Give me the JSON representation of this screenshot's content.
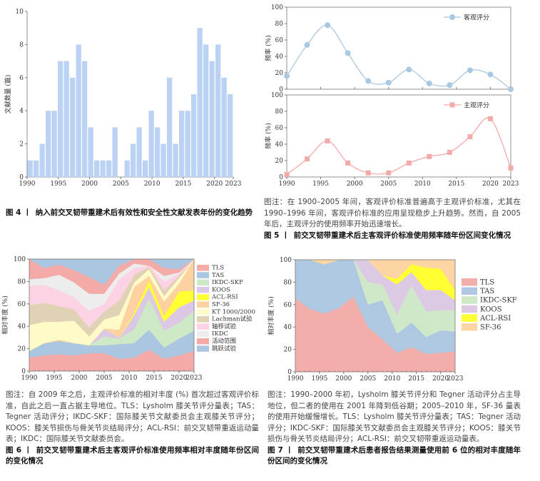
{
  "figures": {
    "fig4": {
      "label": "图 4 丨",
      "title": "纳入前交叉韧带重建术后有效性和安全性文献发表年份的变化趋势"
    },
    "fig5": {
      "note": "图注：在 1900–2005 年间，客观评价标准普遍高于主观评价标准，尤其在 1990–1996 年间，客观评价标准的应用呈现稳步上升趋势。然而，自 2005 年后，主观评分的使用频率开始迅速增长。",
      "label": "图 5 丨",
      "title": "前交叉韧带重建术后主客观评价标准使用频率随年份区间变化情况"
    },
    "fig6": {
      "note": "图注：自 2009 年之后，主观评价标准的相对丰度 (%) 首次超过客观评价标准，自此之后一直占据主导地位。TLS：Lysholm 膝关节评分量表；TAS：Tegner 活动评分；IKDC-SKF：国际膝关节文献委员会主观膝关节评分；KOOS：膝关节损伤与骨关节炎结局评分；ACL-RSI：前交叉韧带重返运动量表；IKDC：国际膝关节文献委员会。",
      "label": "图 6 丨",
      "title": "前交叉韧带重建术后主客观评价标准使用频率相对丰度随年份区间的变化情况"
    },
    "fig7": {
      "note": "图注：1990–2000 年初，Lysholm 膝关节评分和 Tegner 活动评分占主导地位，但二者的使用在 2001 年降到低谷期；2005–2010 年，SF-36 量表的使用开始缓慢增长。TLS：Lysholm 膝关节评分量表；TAS：Tegner 活动评分；IKDC-SKF：国际膝关节文献委员会主观膝关节评分；KOOS：膝关节损伤与骨关节炎结局评分；ACL-RSI：前交叉韧带重返运动量表。",
      "label": "图 7 丨",
      "title": "前交叉韧带重建术后患者报告结果测量使用前 6 位的相对丰度随年份区间的变化情况"
    }
  },
  "chart_data": [
    {
      "id": "fig4",
      "type": "bar",
      "ylabel": "文献数量 (篇)",
      "xlabel": "",
      "ylim": [
        0,
        10
      ],
      "yticks": [
        0,
        2,
        4,
        6,
        8,
        10
      ],
      "xticks": [
        1990,
        1995,
        2000,
        2005,
        2010,
        2015,
        2020,
        2023
      ],
      "categories": [
        1990,
        1991,
        1992,
        1993,
        1994,
        1995,
        1996,
        1997,
        1998,
        1999,
        2000,
        2001,
        2002,
        2003,
        2004,
        2005,
        2006,
        2007,
        2008,
        2009,
        2010,
        2011,
        2012,
        2013,
        2014,
        2015,
        2016,
        2017,
        2018,
        2019,
        2020,
        2021,
        2022,
        2023
      ],
      "values": [
        1,
        1,
        2,
        4,
        4,
        7,
        7,
        6,
        8,
        7,
        3,
        1,
        1,
        1,
        3,
        0,
        1,
        2,
        3,
        1,
        4,
        3,
        2,
        6,
        2,
        4,
        4,
        5,
        9,
        8,
        7,
        8,
        6,
        5
      ],
      "color": "#bcd2f4"
    },
    {
      "id": "fig5",
      "type": "line",
      "ylabel": "频率 (%)",
      "ylim": [
        0,
        100
      ],
      "yticks": [
        0,
        20,
        40,
        60,
        80,
        100
      ],
      "xticks": [
        1990,
        1995,
        2000,
        2005,
        2010,
        2015,
        2020,
        2023
      ],
      "x": [
        1990,
        1993,
        1996,
        1999,
        2002,
        2005,
        2008,
        2011,
        2014,
        2017,
        2020,
        2023
      ],
      "series": [
        {
          "name": "客观评分",
          "values": [
            16,
            54,
            78,
            44,
            10,
            8,
            24,
            7,
            5,
            23,
            18,
            0
          ],
          "color": "#aac8e0",
          "marker": "circle"
        },
        {
          "name": "主观评分",
          "values": [
            3,
            22,
            44,
            17,
            5,
            5,
            17,
            25,
            30,
            49,
            71,
            11
          ],
          "color": "#f4aaa8",
          "marker": "square"
        }
      ]
    },
    {
      "id": "fig6",
      "type": "area",
      "stacked": true,
      "ylabel": "相对丰度 (%)",
      "ylim": [
        0,
        100
      ],
      "legend": "right",
      "yticks": [
        0,
        20,
        40,
        60,
        80,
        100
      ],
      "xticks": [
        1990,
        1995,
        2000,
        2005,
        2010,
        2015,
        2020,
        2023
      ],
      "x": [
        1990,
        1993,
        1996,
        1999,
        2002,
        2005,
        2008,
        2011,
        2014,
        2017,
        2020,
        2023
      ],
      "series": [
        {
          "name": "TLS",
          "color": "#f4aaa6",
          "values": [
            12,
            14,
            15,
            14,
            16,
            16,
            11,
            12,
            19,
            11,
            14,
            18
          ]
        },
        {
          "name": "TAS",
          "color": "#aac6e0",
          "values": [
            6,
            11,
            12,
            11,
            7,
            7,
            13,
            13,
            18,
            10,
            15,
            18
          ]
        },
        {
          "name": "IKDC-SKF",
          "color": "#cde9c6",
          "values": [
            0,
            0,
            0,
            0,
            0,
            8,
            5,
            12,
            28,
            15,
            14,
            18
          ]
        },
        {
          "name": "KOOS",
          "color": "#dcc8e4",
          "values": [
            0,
            0,
            0,
            0,
            0,
            7,
            1,
            13,
            10,
            8,
            14,
            9
          ]
        },
        {
          "name": "ACL-RSI",
          "color": "#ffff33",
          "values": [
            0,
            0,
            0,
            0,
            0,
            0,
            0,
            2,
            6,
            5,
            14,
            9
          ]
        },
        {
          "name": "SF-36",
          "color": "#fdd2a0",
          "values": [
            0,
            0,
            1,
            0,
            0,
            0,
            7,
            23,
            4,
            13,
            7,
            28
          ]
        },
        {
          "name": "KT 1000/2000",
          "color": "#fffac8",
          "values": [
            23,
            19,
            16,
            20,
            8,
            8,
            13,
            4,
            6,
            5,
            5,
            0
          ]
        },
        {
          "name": "Lachman试验",
          "color": "#e0d2b4",
          "values": [
            18,
            17,
            14,
            10,
            8,
            7,
            13,
            7,
            2,
            5,
            2,
            0
          ]
        },
        {
          "name": "轴移试验",
          "color": "#fcd3e4",
          "values": [
            17,
            16,
            14,
            11,
            15,
            7,
            19,
            6,
            1,
            8,
            2,
            0
          ]
        },
        {
          "name": "IKDC",
          "color": "#ededed",
          "values": [
            6,
            6,
            14,
            13,
            15,
            9,
            5,
            4,
            0,
            5,
            1,
            0
          ]
        },
        {
          "name": "活动范围",
          "color": "#f4aaa6",
          "values": [
            18,
            9,
            9,
            11,
            15,
            8,
            7,
            4,
            6,
            7,
            3,
            0
          ]
        },
        {
          "name": "跳跃试验",
          "color": "#aac6e0",
          "values": [
            0,
            8,
            5,
            10,
            16,
            23,
            6,
            0,
            0,
            8,
            9,
            0
          ]
        }
      ]
    },
    {
      "id": "fig7",
      "type": "area",
      "stacked": true,
      "ylabel": "相对丰度 (%)",
      "ylim": [
        0,
        100
      ],
      "legend": "right",
      "yticks": [
        0,
        20,
        40,
        60,
        80,
        100
      ],
      "xticks": [
        1990,
        1995,
        2000,
        2005,
        2010,
        2015,
        2020,
        2023
      ],
      "x": [
        1990,
        1993,
        1996,
        1999,
        2002,
        2005,
        2008,
        2011,
        2014,
        2017,
        2020,
        2023
      ],
      "series": [
        {
          "name": "TLS",
          "color": "#f4aeaa",
          "values": [
            66,
            56,
            52,
            57,
            67,
            40,
            29,
            17,
            22,
            16,
            17,
            18
          ]
        },
        {
          "name": "TAS",
          "color": "#aec8e2",
          "values": [
            34,
            44,
            44,
            43,
            33,
            20,
            35,
            17,
            22,
            15,
            20,
            18
          ]
        },
        {
          "name": "IKDC-SKF",
          "color": "#cfe8c8",
          "values": [
            0,
            0,
            0,
            0,
            0,
            20,
            14,
            17,
            33,
            23,
            18,
            19
          ]
        },
        {
          "name": "KOOS",
          "color": "#dccae4",
          "values": [
            0,
            0,
            0,
            0,
            0,
            20,
            8,
            27,
            12,
            19,
            18,
            9
          ]
        },
        {
          "name": "ACL-RSI",
          "color": "#ffff33",
          "values": [
            0,
            0,
            0,
            0,
            0,
            0,
            0,
            5,
            7,
            20,
            19,
            9
          ]
        },
        {
          "name": "SF-36",
          "color": "#fdd4a4",
          "values": [
            0,
            0,
            4,
            0,
            0,
            0,
            14,
            17,
            4,
            7,
            8,
            27
          ]
        }
      ]
    }
  ]
}
